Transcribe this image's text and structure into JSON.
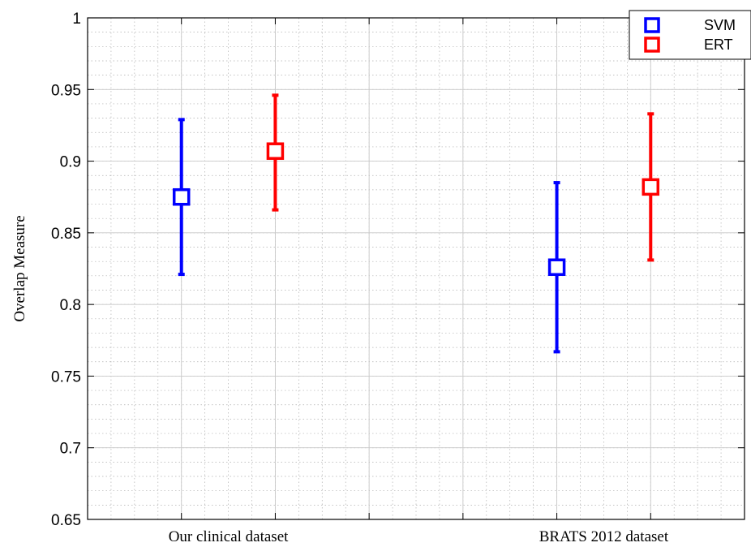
{
  "chart_data": {
    "type": "scatter",
    "subtype": "error-bar",
    "title": "",
    "xlabel": "",
    "ylabel": "Overlap Measure",
    "ylim": [
      0.65,
      1.0
    ],
    "yticks": [
      0.65,
      0.7,
      0.75,
      0.8,
      0.85,
      0.9,
      0.95,
      1
    ],
    "ytick_labels": [
      "0.65",
      "0.7",
      "0.75",
      "0.8",
      "0.85",
      "0.9",
      "0.95",
      "1"
    ],
    "categories": [
      "Our clinical dataset",
      "BRATS 2012 dataset"
    ],
    "grid": true,
    "minor_grid": true,
    "legend_position": "top-right",
    "series": [
      {
        "name": "SVM",
        "color": "#0000ff",
        "marker": "square",
        "values": [
          0.875,
          0.826
        ],
        "lower": [
          0.821,
          0.767
        ],
        "upper": [
          0.929,
          0.885
        ]
      },
      {
        "name": "ERT",
        "color": "#ff0000",
        "marker": "square",
        "values": [
          0.907,
          0.882
        ],
        "lower": [
          0.866,
          0.831
        ],
        "upper": [
          0.946,
          0.933
        ]
      }
    ]
  }
}
